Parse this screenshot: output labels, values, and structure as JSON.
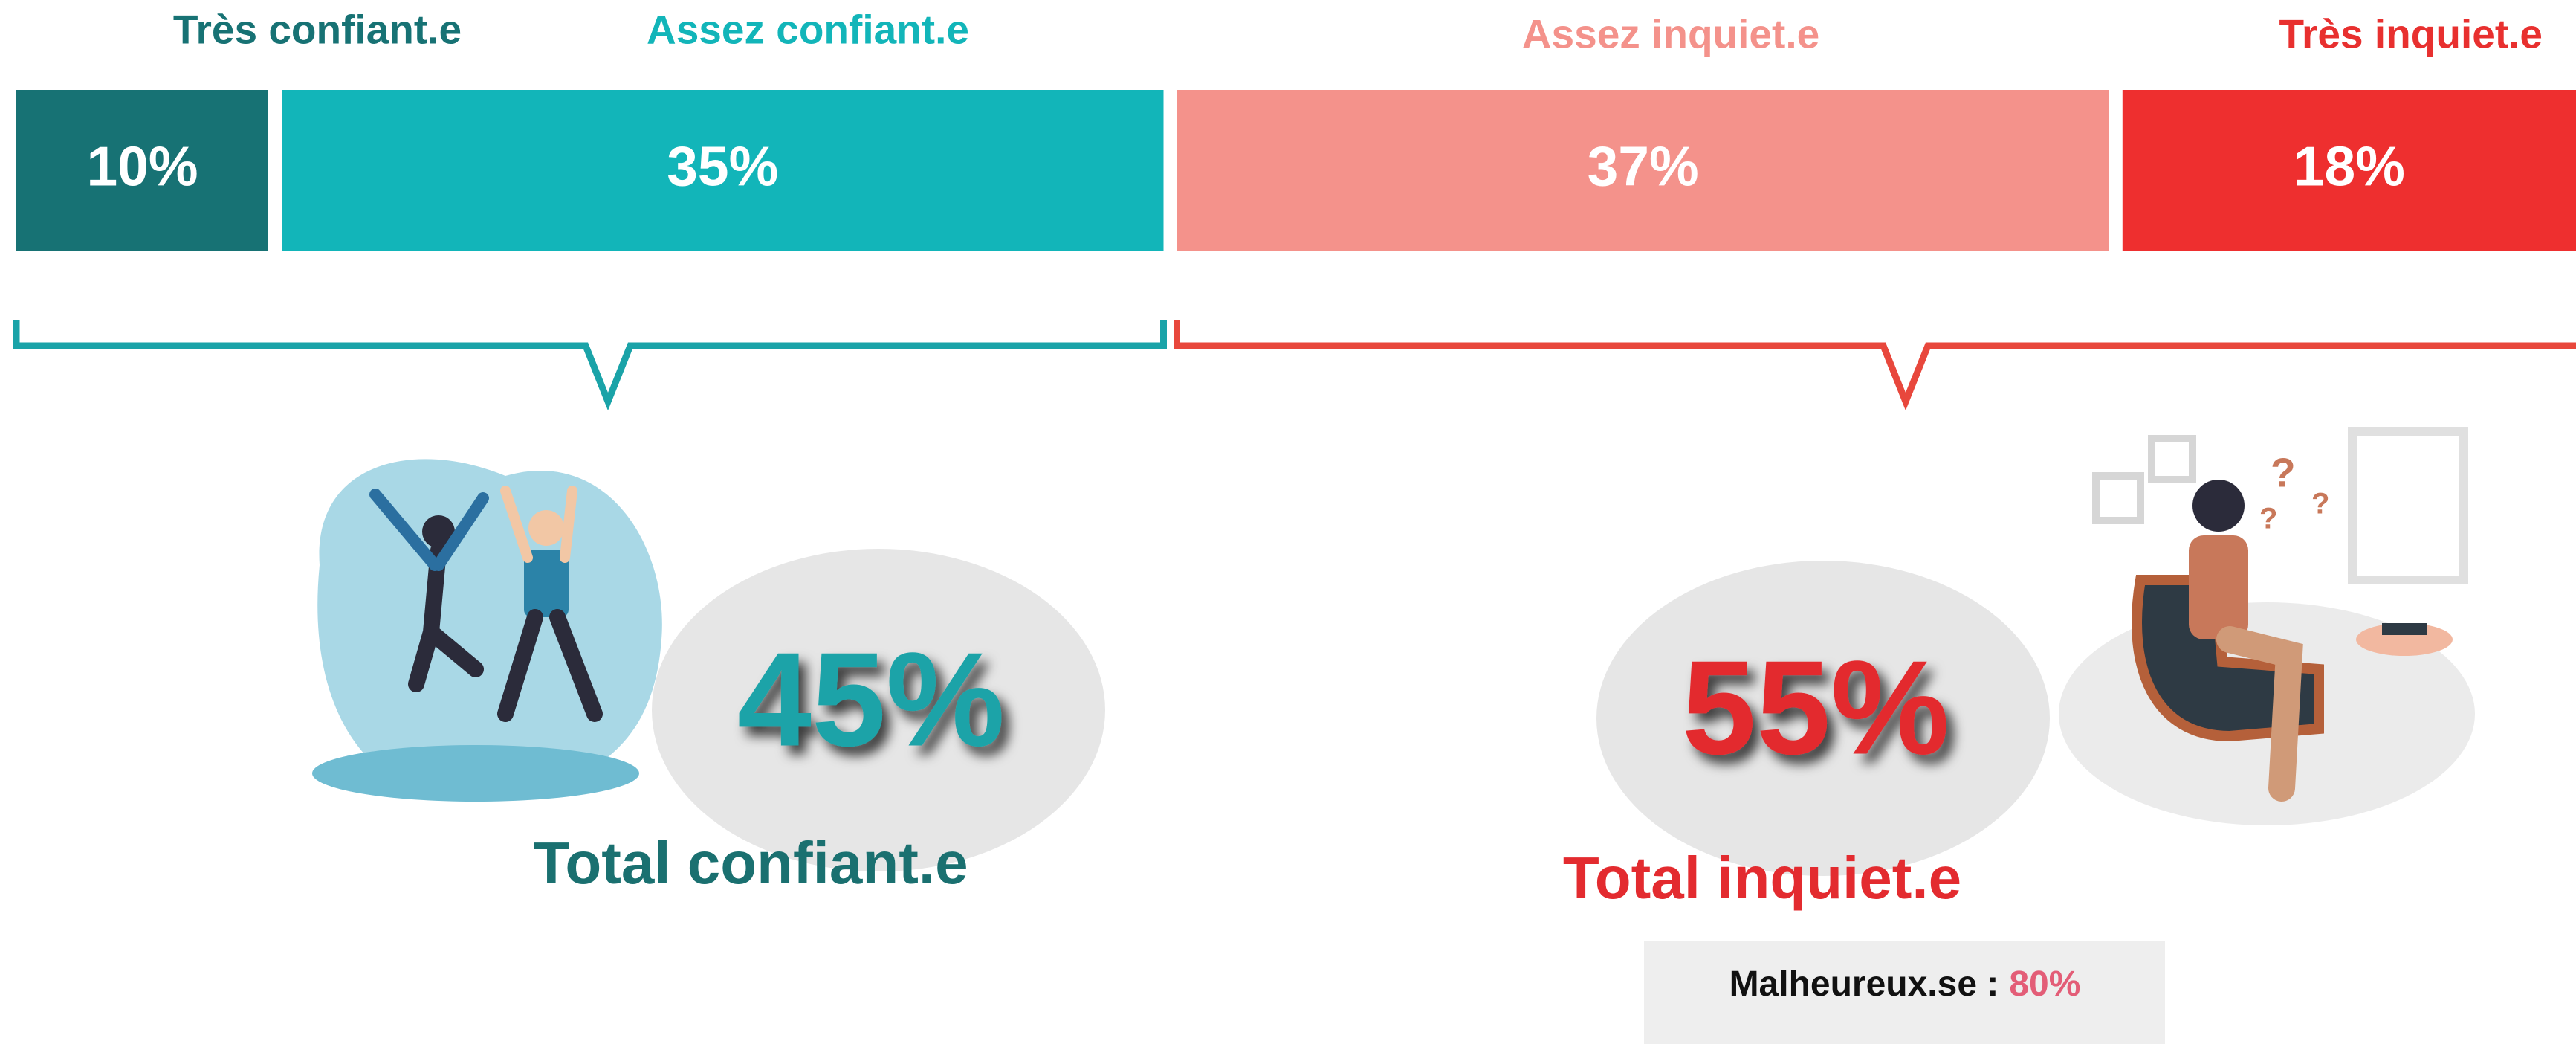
{
  "chart_data": {
    "type": "stacked_bar",
    "series": [
      {
        "name": "Très confiant.e",
        "color": "#177274",
        "values": [
          10
        ],
        "value_labels": [
          "10%"
        ]
      },
      {
        "name": "Assez confiant.e",
        "color": "#12b5b9",
        "values": [
          35
        ],
        "value_labels": [
          "35%"
        ]
      },
      {
        "name": "Assez inquiet.e",
        "color": "#f4928b",
        "values": [
          37
        ],
        "value_labels": [
          "37%"
        ]
      },
      {
        "name": "Très inquiet.e",
        "color": "#ee2f2f",
        "values": [
          18
        ],
        "value_labels": [
          "18%"
        ]
      }
    ],
    "totals": {
      "labels": [
        "Total confiant.e",
        "Total inquiet.e"
      ],
      "values": [
        45,
        55
      ],
      "value_labels": [
        "45%",
        "55%"
      ],
      "colors": [
        "#1aa3a8",
        "#e32b2f"
      ]
    },
    "note": {
      "label": "Malheureux.se :",
      "value": 80,
      "value_label": "80%"
    }
  }
}
